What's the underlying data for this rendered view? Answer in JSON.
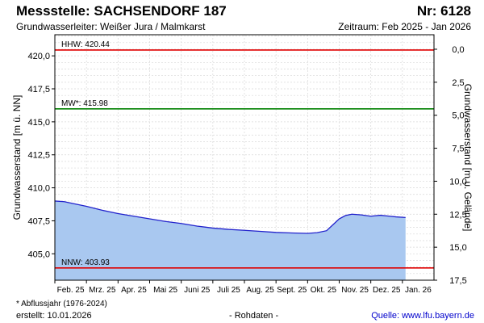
{
  "header": {
    "title": "Messstelle: SACHSENDORF 187",
    "number": "Nr: 6128",
    "aquifer": "Grundwasserleiter:   Weißer Jura / Malmkarst",
    "period": "Zeitraum: Feb 2025 - Jan 2026"
  },
  "footer": {
    "footnote": "* Abflussjahr (1976-2024)",
    "created": "erstellt:  10.01.2026",
    "rawdata": "- Rohdaten -",
    "source": "Quelle: www.lfu.bayern.de"
  },
  "colors": {
    "hhw_line": "#e00000",
    "nnw_line": "#e00000",
    "mw_line": "#008000",
    "series_line": "#2222cc",
    "series_fill": "#a9c8f0",
    "grid": "#d8d8d8"
  },
  "chart_data": {
    "type": "area",
    "ylabel": "Grundwasserstand [m ü. NN]",
    "ylabel_right": "Grundwasserstand [m u. Gelände]",
    "ylim": [
      403.0,
      421.6
    ],
    "yticks": [
      405.0,
      407.5,
      410.0,
      412.5,
      415.0,
      417.5,
      420.0
    ],
    "ytick_labels": [
      "405,0",
      "407,5",
      "410,0",
      "412,5",
      "415,0",
      "417,5",
      "420,0"
    ],
    "right_ticks": [
      0.0,
      2.5,
      5.0,
      7.5,
      10.0,
      12.5,
      15.0,
      17.5
    ],
    "right_tick_labels": [
      "0,0",
      "2,5",
      "5,0",
      "7,5",
      "10,0",
      "12,5",
      "15,0",
      "17,5"
    ],
    "right_reference_level": 420.5,
    "x_categories": [
      "Feb. 25",
      "Mrz. 25",
      "Apr. 25",
      "Mai 25",
      "Juni 25",
      "Juli 25",
      "Aug. 25",
      "Sept. 25",
      "Okt. 25",
      "Nov. 25",
      "Dez. 25",
      "Jan. 26"
    ],
    "grid": true,
    "reference_lines": [
      {
        "label": "HHW: 420.44",
        "value": 420.44,
        "color": "#e00000"
      },
      {
        "label": "MW*: 415.98",
        "value": 415.98,
        "color": "#008000"
      },
      {
        "label": "NNW: 403.93",
        "value": 403.93,
        "color": "#e00000"
      }
    ],
    "series": [
      {
        "x": [
          0.0,
          0.3,
          0.6,
          1.0,
          1.5,
          2.0,
          2.5,
          3.0,
          3.5,
          4.0,
          4.5,
          5.0,
          5.5,
          6.0,
          6.5,
          7.0,
          7.5,
          8.0,
          8.3,
          8.6,
          8.8,
          9.0,
          9.2,
          9.4,
          9.7,
          10.0,
          10.3,
          10.6,
          10.8,
          11.1
        ],
        "y": [
          409.0,
          408.95,
          408.8,
          408.6,
          408.3,
          408.05,
          407.85,
          407.65,
          407.45,
          407.3,
          407.1,
          406.95,
          406.85,
          406.78,
          406.7,
          406.62,
          406.58,
          406.55,
          406.6,
          406.75,
          407.2,
          407.65,
          407.9,
          408.0,
          407.95,
          407.85,
          407.92,
          407.85,
          407.8,
          407.75
        ]
      }
    ]
  }
}
